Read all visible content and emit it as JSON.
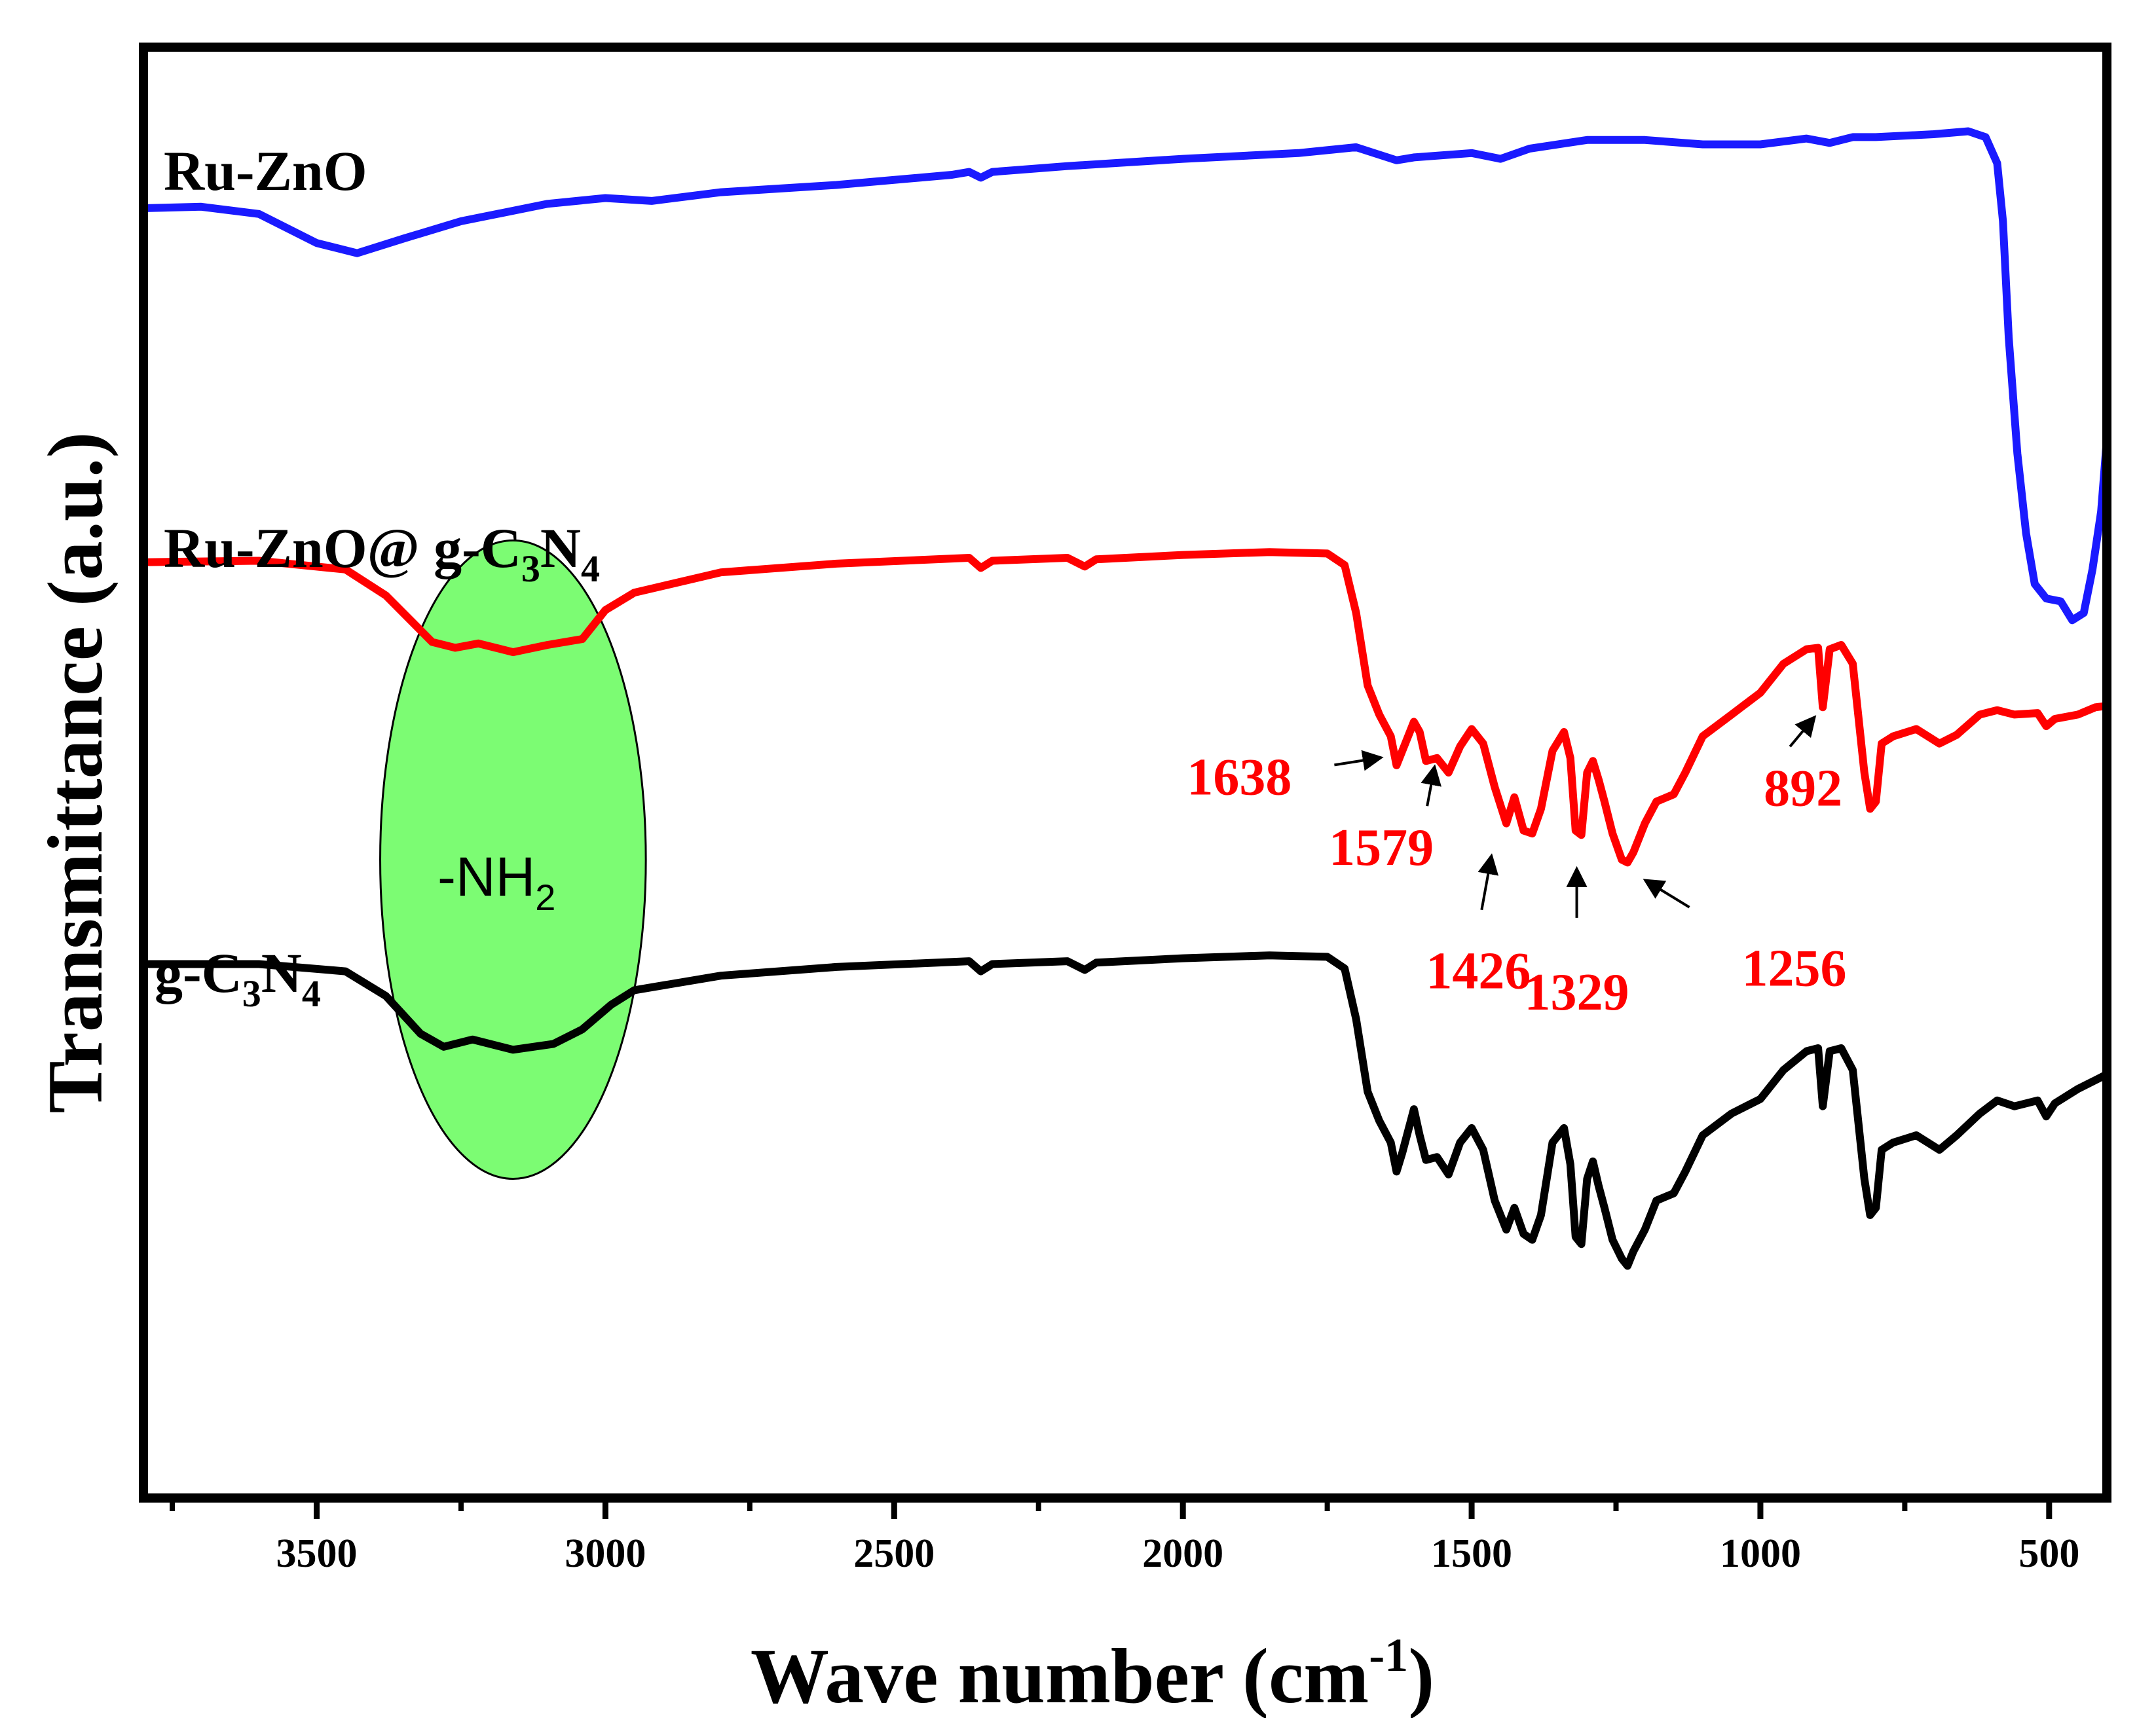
{
  "chart_data": {
    "type": "line",
    "title": "",
    "xlabel": "Wave number (cm",
    "xlabel_sup": "-1",
    "xlabel_close": ")",
    "ylabel": "Transmittance (a.u.)",
    "xlim": [
      3800,
      400
    ],
    "x_ticks": [
      3500,
      3000,
      2500,
      2000,
      1500,
      1000,
      500
    ],
    "x_tick_labels": [
      "3500",
      "3000",
      "2500",
      "2000",
      "1500",
      "1000",
      "500"
    ],
    "x_minor_ticks": [
      3750,
      3250,
      2750,
      2250,
      1750,
      1250,
      750
    ],
    "ylim": [
      0,
      100
    ],
    "y_ticks": [],
    "colors": {
      "Ru-ZnO": "#1a1aff",
      "Ru-ZnO@ g-C3N4": "#ff0000",
      "g-C3N4": "#000000",
      "highlight": "#7cfc73"
    },
    "series": [
      {
        "name": "Ru-ZnO",
        "color": "#1a1aff",
        "points": [
          [
            3800,
            88.9
          ],
          [
            3700,
            89.0
          ],
          [
            3600,
            88.5
          ],
          [
            3500,
            86.5
          ],
          [
            3430,
            85.8
          ],
          [
            3350,
            86.8
          ],
          [
            3250,
            88.0
          ],
          [
            3100,
            89.2
          ],
          [
            3000,
            89.6
          ],
          [
            2920,
            89.4
          ],
          [
            2800,
            90.0
          ],
          [
            2600,
            90.5
          ],
          [
            2400,
            91.2
          ],
          [
            2370,
            91.4
          ],
          [
            2350,
            91.0
          ],
          [
            2330,
            91.4
          ],
          [
            2200,
            91.8
          ],
          [
            2000,
            92.3
          ],
          [
            1800,
            92.7
          ],
          [
            1700,
            93.1
          ],
          [
            1630,
            92.2
          ],
          [
            1600,
            92.4
          ],
          [
            1500,
            92.7
          ],
          [
            1450,
            92.3
          ],
          [
            1400,
            93.0
          ],
          [
            1300,
            93.6
          ],
          [
            1200,
            93.6
          ],
          [
            1100,
            93.3
          ],
          [
            1000,
            93.3
          ],
          [
            920,
            93.7
          ],
          [
            880,
            93.4
          ],
          [
            840,
            93.8
          ],
          [
            800,
            93.8
          ],
          [
            700,
            94.0
          ],
          [
            640,
            94.2
          ],
          [
            610,
            93.8
          ],
          [
            590,
            92.0
          ],
          [
            580,
            88.0
          ],
          [
            570,
            80.0
          ],
          [
            555,
            72.0
          ],
          [
            540,
            66.5
          ],
          [
            525,
            63.0
          ],
          [
            505,
            62.0
          ],
          [
            480,
            61.8
          ],
          [
            460,
            60.5
          ],
          [
            440,
            61.0
          ],
          [
            425,
            64.0
          ],
          [
            410,
            68.0
          ],
          [
            400,
            73.0
          ]
        ]
      },
      {
        "name": "Ru-ZnO@ g-C3N4",
        "color": "#ff0000",
        "points": [
          [
            3800,
            64.5
          ],
          [
            3600,
            64.6
          ],
          [
            3450,
            64.0
          ],
          [
            3380,
            62.2
          ],
          [
            3300,
            59.0
          ],
          [
            3260,
            58.6
          ],
          [
            3220,
            58.9
          ],
          [
            3160,
            58.3
          ],
          [
            3100,
            58.8
          ],
          [
            3040,
            59.2
          ],
          [
            3000,
            61.2
          ],
          [
            2950,
            62.4
          ],
          [
            2800,
            63.8
          ],
          [
            2600,
            64.4
          ],
          [
            2370,
            64.8
          ],
          [
            2350,
            64.1
          ],
          [
            2330,
            64.6
          ],
          [
            2200,
            64.8
          ],
          [
            2170,
            64.2
          ],
          [
            2150,
            64.7
          ],
          [
            2000,
            65.0
          ],
          [
            1850,
            65.2
          ],
          [
            1750,
            65.1
          ],
          [
            1720,
            64.3
          ],
          [
            1700,
            61.0
          ],
          [
            1680,
            56.0
          ],
          [
            1660,
            54.0
          ],
          [
            1640,
            52.5
          ],
          [
            1630,
            50.5
          ],
          [
            1620,
            51.5
          ],
          [
            1600,
            53.5
          ],
          [
            1590,
            52.8
          ],
          [
            1579,
            50.8
          ],
          [
            1560,
            51.0
          ],
          [
            1540,
            50.0
          ],
          [
            1520,
            51.8
          ],
          [
            1500,
            53.0
          ],
          [
            1480,
            52.0
          ],
          [
            1460,
            49.0
          ],
          [
            1440,
            46.5
          ],
          [
            1426,
            48.3
          ],
          [
            1410,
            46.0
          ],
          [
            1395,
            45.8
          ],
          [
            1380,
            47.5
          ],
          [
            1360,
            51.5
          ],
          [
            1340,
            52.8
          ],
          [
            1329,
            51.0
          ],
          [
            1320,
            46.0
          ],
          [
            1310,
            45.7
          ],
          [
            1300,
            50.0
          ],
          [
            1290,
            50.8
          ],
          [
            1280,
            49.5
          ],
          [
            1270,
            48.0
          ],
          [
            1256,
            45.8
          ],
          [
            1240,
            44.0
          ],
          [
            1230,
            43.8
          ],
          [
            1220,
            44.5
          ],
          [
            1200,
            46.5
          ],
          [
            1180,
            48.0
          ],
          [
            1150,
            48.5
          ],
          [
            1130,
            50.0
          ],
          [
            1100,
            52.5
          ],
          [
            1050,
            54.0
          ],
          [
            1000,
            55.5
          ],
          [
            960,
            57.5
          ],
          [
            920,
            58.5
          ],
          [
            900,
            58.6
          ],
          [
            892,
            54.5
          ],
          [
            880,
            58.5
          ],
          [
            860,
            58.8
          ],
          [
            840,
            57.5
          ],
          [
            820,
            50.0
          ],
          [
            810,
            47.5
          ],
          [
            800,
            48.0
          ],
          [
            790,
            52.0
          ],
          [
            770,
            52.5
          ],
          [
            730,
            53.0
          ],
          [
            690,
            52.0
          ],
          [
            660,
            52.6
          ],
          [
            620,
            54.0
          ],
          [
            590,
            54.3
          ],
          [
            560,
            54.0
          ],
          [
            520,
            54.1
          ],
          [
            505,
            53.2
          ],
          [
            490,
            53.7
          ],
          [
            450,
            54.0
          ],
          [
            420,
            54.5
          ],
          [
            400,
            54.6
          ]
        ]
      },
      {
        "name": "g-C3N4",
        "color": "#000000",
        "points": [
          [
            3800,
            36.8
          ],
          [
            3600,
            36.8
          ],
          [
            3450,
            36.3
          ],
          [
            3380,
            34.6
          ],
          [
            3320,
            32.0
          ],
          [
            3280,
            31.1
          ],
          [
            3230,
            31.6
          ],
          [
            3160,
            30.9
          ],
          [
            3090,
            31.3
          ],
          [
            3040,
            32.3
          ],
          [
            2990,
            34.0
          ],
          [
            2950,
            35.0
          ],
          [
            2800,
            36.0
          ],
          [
            2600,
            36.6
          ],
          [
            2370,
            37.0
          ],
          [
            2350,
            36.3
          ],
          [
            2330,
            36.8
          ],
          [
            2200,
            37.0
          ],
          [
            2170,
            36.4
          ],
          [
            2150,
            36.9
          ],
          [
            2000,
            37.2
          ],
          [
            1850,
            37.4
          ],
          [
            1750,
            37.3
          ],
          [
            1720,
            36.5
          ],
          [
            1700,
            33.0
          ],
          [
            1680,
            28.0
          ],
          [
            1660,
            26.0
          ],
          [
            1640,
            24.5
          ],
          [
            1630,
            22.5
          ],
          [
            1620,
            23.8
          ],
          [
            1600,
            26.8
          ],
          [
            1590,
            25.0
          ],
          [
            1579,
            23.3
          ],
          [
            1560,
            23.5
          ],
          [
            1540,
            22.3
          ],
          [
            1520,
            24.5
          ],
          [
            1500,
            25.5
          ],
          [
            1480,
            24.0
          ],
          [
            1460,
            20.5
          ],
          [
            1440,
            18.5
          ],
          [
            1426,
            20.0
          ],
          [
            1410,
            18.2
          ],
          [
            1395,
            17.8
          ],
          [
            1380,
            19.5
          ],
          [
            1360,
            24.5
          ],
          [
            1340,
            25.5
          ],
          [
            1329,
            23.0
          ],
          [
            1320,
            18.0
          ],
          [
            1310,
            17.5
          ],
          [
            1300,
            22.0
          ],
          [
            1290,
            23.2
          ],
          [
            1280,
            21.5
          ],
          [
            1270,
            20.0
          ],
          [
            1256,
            17.8
          ],
          [
            1240,
            16.5
          ],
          [
            1230,
            16.0
          ],
          [
            1220,
            17.0
          ],
          [
            1200,
            18.5
          ],
          [
            1180,
            20.5
          ],
          [
            1150,
            21.0
          ],
          [
            1130,
            22.5
          ],
          [
            1100,
            25.0
          ],
          [
            1050,
            26.5
          ],
          [
            1000,
            27.5
          ],
          [
            960,
            29.5
          ],
          [
            920,
            30.8
          ],
          [
            900,
            31.0
          ],
          [
            892,
            27.0
          ],
          [
            880,
            30.8
          ],
          [
            860,
            31.0
          ],
          [
            840,
            29.5
          ],
          [
            820,
            22.0
          ],
          [
            810,
            19.5
          ],
          [
            800,
            20.0
          ],
          [
            790,
            24.0
          ],
          [
            770,
            24.5
          ],
          [
            730,
            25.0
          ],
          [
            690,
            24.0
          ],
          [
            660,
            25.0
          ],
          [
            620,
            26.5
          ],
          [
            590,
            27.4
          ],
          [
            560,
            27.0
          ],
          [
            520,
            27.4
          ],
          [
            505,
            26.3
          ],
          [
            490,
            27.2
          ],
          [
            450,
            28.2
          ],
          [
            420,
            28.8
          ],
          [
            400,
            29.2
          ]
        ]
      }
    ],
    "series_labels": [
      {
        "text": "Ru-ZnO",
        "color": "#1a1aff"
      },
      {
        "text": "Ru-ZnO@ g-C",
        "sub1": "3",
        "text2": "N",
        "sub2": "4",
        "color": "#ff0000"
      },
      {
        "text": "g-C",
        "sub1": "3",
        "text2": "N",
        "sub2": "4",
        "color": "#000000"
      }
    ],
    "annotations": {
      "highlight": {
        "text": "-NH",
        "sub": "2",
        "x_center": 3160,
        "x_half_width": 230,
        "y_center": 44,
        "y_half_height": 22
      },
      "peaks": [
        {
          "label": "1638",
          "x": 1630,
          "y": 51.2
        },
        {
          "label": "1579",
          "x": 1560,
          "y": 51.3
        },
        {
          "label": "1426",
          "x": 1460,
          "y": 45.5
        },
        {
          "label": "1329",
          "x": 1318,
          "y": 44.5
        },
        {
          "label": "1256",
          "x": 1225,
          "y": 43.2
        },
        {
          "label": "892",
          "x": 892,
          "y": 54.5
        }
      ]
    }
  }
}
